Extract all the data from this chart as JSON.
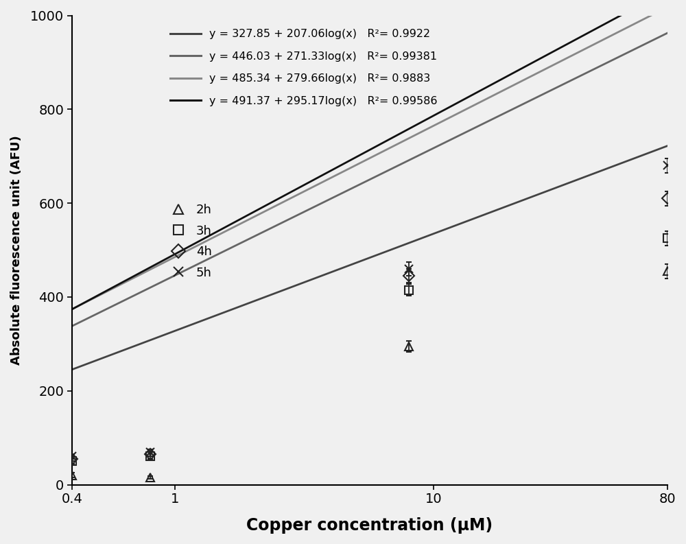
{
  "xlabel": "Copper concentration (μM)",
  "ylabel": "Absolute fluorescence unit (AFU)",
  "xlim": [
    0.4,
    80
  ],
  "ylim": [
    0,
    1000
  ],
  "yticks": [
    0,
    200,
    400,
    600,
    800,
    1000
  ],
  "xticks": [
    0.4,
    1,
    10,
    80
  ],
  "series": [
    {
      "label": "2h",
      "marker": "^",
      "a": 327.85,
      "b": 207.06,
      "data_x": [
        0.4,
        0.8,
        8,
        80
      ],
      "data_y": [
        20,
        15,
        295,
        455
      ],
      "yerr": [
        5,
        3,
        12,
        15
      ]
    },
    {
      "label": "3h",
      "marker": "s",
      "a": 446.03,
      "b": 271.33,
      "data_x": [
        0.4,
        0.8,
        8,
        80
      ],
      "data_y": [
        50,
        60,
        415,
        525
      ],
      "yerr": [
        5,
        5,
        12,
        15
      ]
    },
    {
      "label": "4h",
      "marker": "D",
      "a": 485.34,
      "b": 279.66,
      "data_x": [
        0.4,
        0.8,
        8,
        80
      ],
      "data_y": [
        55,
        65,
        445,
        610
      ],
      "yerr": [
        5,
        5,
        15,
        15
      ]
    },
    {
      "label": "5h",
      "marker": "x",
      "a": 491.37,
      "b": 295.17,
      "data_x": [
        0.4,
        0.8,
        8,
        80
      ],
      "data_y": [
        60,
        70,
        460,
        680
      ],
      "yerr": [
        5,
        5,
        15,
        15
      ]
    }
  ],
  "line_colors": [
    "#444444",
    "#666666",
    "#888888",
    "#111111"
  ],
  "marker_color": "#222222",
  "background_color": "#f0f0f0",
  "legend_equations": [
    "y = 327.85 + 207.06log(x)   R²= 0.9922",
    "y = 446.03 + 271.33log(x)   R²= 0.99381",
    "y = 485.34 + 279.66log(x)   R²= 0.9883",
    "y = 491.37 + 295.17log(x)   R²= 0.99586"
  ]
}
